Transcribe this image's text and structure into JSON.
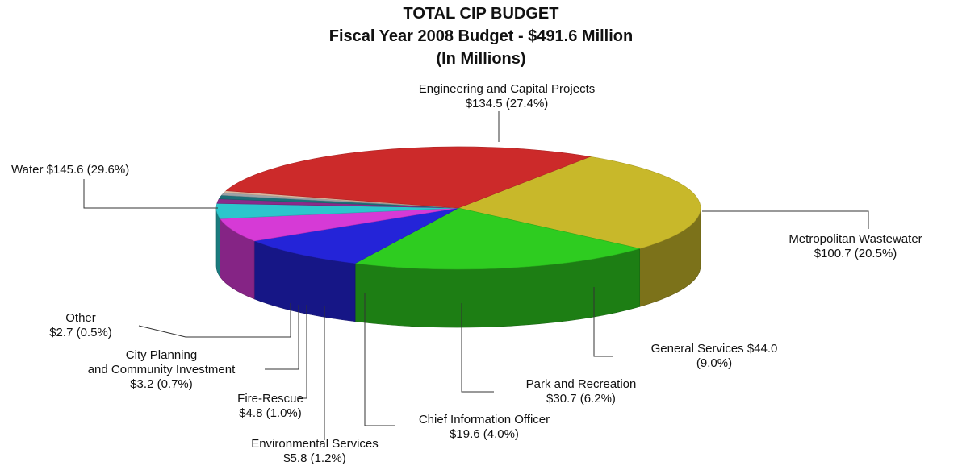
{
  "chart_data": {
    "type": "pie",
    "title": "TOTAL CIP BUDGET",
    "subtitle": "Fiscal Year 2008 Budget - $491.6 Million",
    "subtitle2": "(In Millions)",
    "slices": [
      {
        "key": "eng",
        "label_line1": "Engineering and Capital Projects",
        "label_line2": "$134.5 (27.4%)",
        "value": 134.5,
        "percent": 27.4,
        "color": "#c8b82a"
      },
      {
        "key": "metro",
        "label_line1": "Metropolitan Wastewater",
        "label_line2": "$100.7 (20.5%)",
        "value": 100.7,
        "percent": 20.5,
        "color": "#2ecc20"
      },
      {
        "key": "gen",
        "label_line1": "General Services $44.0",
        "label_line2": "(9.0%)",
        "value": 44.0,
        "percent": 9.0,
        "color": "#2424d8"
      },
      {
        "key": "park",
        "label_line1": "Park and Recreation",
        "label_line2": "$30.7 (6.2%)",
        "value": 30.7,
        "percent": 6.2,
        "color": "#d63ad6"
      },
      {
        "key": "cio",
        "label_line1": "Chief Information Officer",
        "label_line2": "$19.6 (4.0%)",
        "value": 19.6,
        "percent": 4.0,
        "color": "#2cc6cc"
      },
      {
        "key": "env",
        "label_line1": "Environmental Services",
        "label_line2": "$5.8 (1.2%)",
        "value": 5.8,
        "percent": 1.2,
        "color": "#8a2a8a"
      },
      {
        "key": "fire",
        "label_line1": "Fire-Rescue",
        "label_line2": "$4.8 (1.0%)",
        "value": 4.8,
        "percent": 1.0,
        "color": "#1c6f78"
      },
      {
        "key": "city",
        "label_line1": "City Planning",
        "label_line2": "and Community Investment",
        "label_line3": "$3.2 (0.7%)",
        "value": 3.2,
        "percent": 0.7,
        "color": "#9aa2a8"
      },
      {
        "key": "other",
        "label_line1": "Other",
        "label_line2": "$2.7 (0.5%)",
        "value": 2.7,
        "percent": 0.5,
        "color": "#d8b8a0"
      },
      {
        "key": "water",
        "label_line1": "Water $145.6 (29.6%)",
        "value": 145.6,
        "percent": 29.6,
        "color": "#cc2a2a"
      }
    ]
  }
}
